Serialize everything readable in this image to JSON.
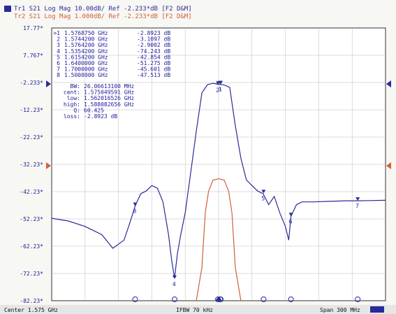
{
  "header": {
    "tr1": "Tr1 S21 Log Mag 10.00dB/ Ref -2.233*dB [F2 D&M]",
    "tr2": "Tr2 S21 Log Mag 1.000dB/ Ref -2.233*dB [F2 D&M]"
  },
  "colors": {
    "trace1": "#2a2a9c",
    "trace2": "#d0603a",
    "grid": "#b8b8c0",
    "frame": "#333333"
  },
  "chart_data": {
    "type": "line",
    "ylim": [
      -82.23,
      17.77
    ],
    "xlim_ghz": [
      1.425,
      1.725
    ],
    "grid": true,
    "y_ticks": [
      "17.77*",
      "7.767*",
      "-2.233*",
      "-12.23*",
      "-22.23*",
      "-32.23*",
      "-42.23*",
      "-52.23*",
      "-62.23*",
      "-72.23*",
      "-82.23*"
    ],
    "markers": [
      {
        "n": "1",
        "freq": "1.5768750 GHz",
        "val": "-2.8923 dB"
      },
      {
        "n": "2",
        "freq": "1.5744200 GHz",
        "val": "-3.1097 dB"
      },
      {
        "n": "3",
        "freq": "1.5764200 GHz",
        "val": "-2.9002 dB"
      },
      {
        "n": "4",
        "freq": "1.5354200 GHz",
        "val": "-74.243 dB"
      },
      {
        "n": "5",
        "freq": "1.6154200 GHz",
        "val": "-42.854 dB"
      },
      {
        "n": "6",
        "freq": "1.6400000 GHz",
        "val": "-51.275 dB"
      },
      {
        "n": "7",
        "freq": "1.7000000 GHz",
        "val": "-45.601 dB"
      },
      {
        "n": "8",
        "freq": "1.5000000 GHz",
        "val": "-47.513 dB"
      }
    ],
    "bw_stats": [
      {
        "label": "BW:",
        "value": "26.06613100 MHz"
      },
      {
        "label": "cent:",
        "value": "1.575049591 GHz"
      },
      {
        "label": "low:",
        "value": "1.562016526 GHz"
      },
      {
        "label": "high:",
        "value": "1.588082656 GHz"
      },
      {
        "label": "Q:",
        "value": "60.425"
      },
      {
        "label": "loss:",
        "value": "-2.8923 dB"
      }
    ],
    "series": [
      {
        "color": "#2a2a9c",
        "x": [
          1.425,
          1.44,
          1.455,
          1.47,
          1.48,
          1.49,
          1.495,
          1.5,
          1.505,
          1.51,
          1.515,
          1.52,
          1.525,
          1.53,
          1.533,
          1.5354,
          1.538,
          1.541,
          1.545,
          1.55,
          1.555,
          1.56,
          1.565,
          1.57,
          1.575,
          1.58,
          1.585,
          1.59,
          1.595,
          1.6,
          1.605,
          1.61,
          1.615,
          1.62,
          1.625,
          1.63,
          1.635,
          1.638,
          1.64,
          1.645,
          1.65,
          1.66,
          1.675,
          1.69,
          1.7,
          1.71,
          1.725
        ],
        "y": [
          -52,
          -53,
          -55,
          -58,
          -63,
          -60,
          -54,
          -47.5,
          -43,
          -42,
          -40,
          -41,
          -46,
          -58,
          -68,
          -74,
          -65,
          -58,
          -50,
          -35,
          -20,
          -6,
          -3,
          -2.5,
          -2.9,
          -3.1,
          -4,
          -18,
          -30,
          -38,
          -40,
          -42,
          -43,
          -47,
          -44,
          -50,
          -55,
          -60,
          -51.3,
          -47,
          -46,
          -46,
          -45.8,
          -45.6,
          -45.6,
          -45.5,
          -45.4
        ]
      },
      {
        "color": "#d0603a",
        "x": [
          1.555,
          1.56,
          1.563,
          1.566,
          1.57,
          1.575,
          1.58,
          1.584,
          1.587,
          1.59,
          1.595
        ],
        "y": [
          -82.23,
          -70,
          -50,
          -42,
          -38,
          -37.5,
          -38,
          -42,
          -50,
          -70,
          -82.23
        ]
      }
    ]
  },
  "footer": {
    "center": "Center 1.575 GHz",
    "ifbw": "IFBW 70 kHz",
    "span": "Span 300 MHz"
  }
}
